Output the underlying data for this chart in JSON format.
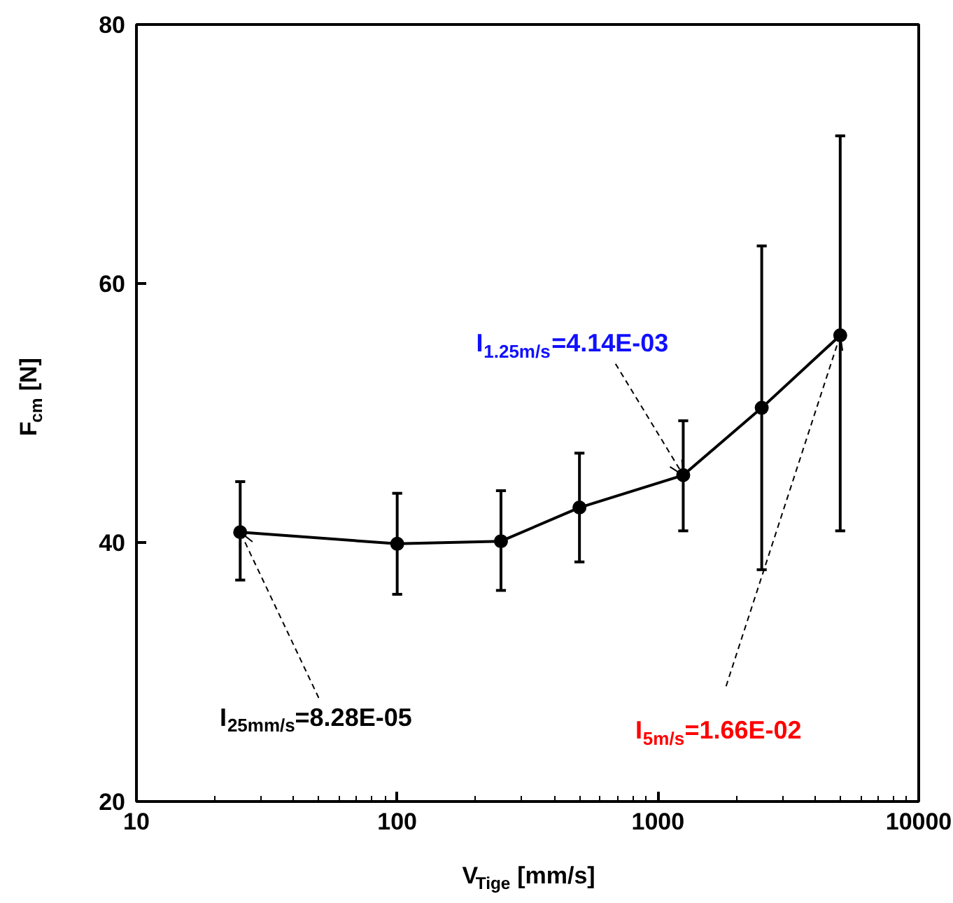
{
  "chart_data": {
    "type": "line",
    "xlabel": "V$_{Tige}$ [mm/s]",
    "ylabel": "F$_{cm}$ [N]",
    "x": [
      25,
      100,
      250,
      500,
      1250,
      2500,
      5000
    ],
    "series": [
      {
        "color": "#000000",
        "values": [
          40.8,
          39.9,
          40.1,
          42.7,
          45.2,
          50.4,
          56.0
        ],
        "errors": [
          [
            37.1,
            44.7
          ],
          [
            36.0,
            43.8
          ],
          [
            36.3,
            44.0
          ],
          [
            38.5,
            46.9
          ],
          [
            40.9,
            49.4
          ],
          [
            37.9,
            62.9
          ],
          [
            40.9,
            71.4
          ]
        ]
      }
    ],
    "xlim": [
      10,
      10000
    ],
    "ylim": [
      20,
      80
    ],
    "xticks": [
      10,
      100,
      1000,
      10000
    ],
    "yticks": [
      20,
      40,
      60,
      80
    ],
    "log": "x",
    "grid": false,
    "marker": "circle",
    "line_style": "solid",
    "annotations": [
      {
        "text": "I$_{25mm/s}$=8.28E-05",
        "x": 25,
        "y": 40.8
      },
      {
        "text": "I$_{1.25m/s}$=4.14E-03",
        "x": 1250,
        "y": 45.2
      },
      {
        "text": "I$_{5m/s}$=1.66E-02",
        "x": 5000,
        "y": 56.0
      }
    ]
  }
}
